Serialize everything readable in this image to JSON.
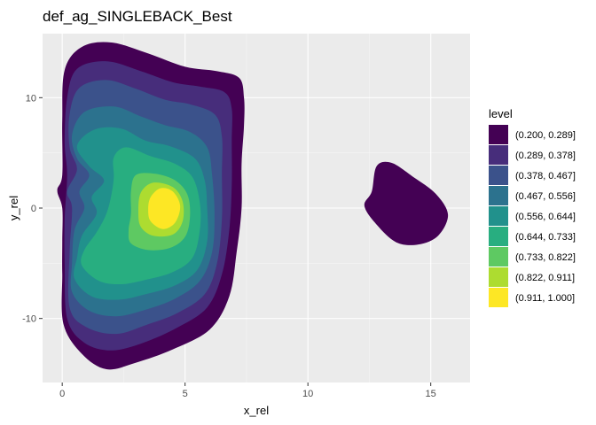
{
  "chart_data": {
    "type": "contour",
    "title": "def_ag_SINGLEBACK_Best",
    "xlabel": "x_rel",
    "ylabel": "y_rel",
    "xlim": [
      -0.8,
      16.6
    ],
    "ylim": [
      -15.8,
      15.8
    ],
    "x_ticks": [
      0,
      5,
      10,
      15
    ],
    "y_ticks": [
      -10,
      0,
      10
    ],
    "grid": true,
    "legend": {
      "title": "level",
      "position": "right",
      "entries": [
        {
          "label": "(0.200, 0.289]",
          "color": "#440154"
        },
        {
          "label": "(0.289, 0.378]",
          "color": "#472d7b"
        },
        {
          "label": "(0.378, 0.467]",
          "color": "#3b528b"
        },
        {
          "label": "(0.467, 0.556]",
          "color": "#2c728e"
        },
        {
          "label": "(0.556, 0.644]",
          "color": "#21918c"
        },
        {
          "label": "(0.644, 0.733]",
          "color": "#28ae80"
        },
        {
          "label": "(0.733, 0.822]",
          "color": "#5ec962"
        },
        {
          "label": "(0.822, 0.911]",
          "color": "#addc30"
        },
        {
          "label": "(0.911, 1.000]",
          "color": "#fde725"
        }
      ]
    },
    "regions": [
      {
        "level": 1,
        "points": [
          [
            0,
            -6
          ],
          [
            0.05,
            -10.5
          ],
          [
            0.8,
            -13.2
          ],
          [
            1.8,
            -14.6
          ],
          [
            3,
            -14
          ],
          [
            4.5,
            -12.8
          ],
          [
            6,
            -11
          ],
          [
            6.8,
            -8
          ],
          [
            7.1,
            -4
          ],
          [
            7.3,
            0
          ],
          [
            7.3,
            4
          ],
          [
            7.4,
            7.5
          ],
          [
            7.4,
            10
          ],
          [
            7.2,
            11.8
          ],
          [
            6.3,
            12.4
          ],
          [
            5,
            12.8
          ],
          [
            3.5,
            14
          ],
          [
            2,
            15
          ],
          [
            0.8,
            14.6
          ],
          [
            0.1,
            12.5
          ],
          [
            0,
            8
          ],
          [
            0,
            3
          ],
          [
            -0.2,
            1.6
          ],
          [
            0,
            0
          ],
          [
            0,
            -3
          ]
        ]
      },
      {
        "level": 1,
        "points": [
          [
            12.6,
            1.5
          ],
          [
            12.8,
            3.8
          ],
          [
            13.4,
            4.1
          ],
          [
            14.3,
            2.8
          ],
          [
            15.2,
            1.3
          ],
          [
            15.7,
            -0.6
          ],
          [
            15.3,
            -2.5
          ],
          [
            14.5,
            -3.3
          ],
          [
            13.6,
            -3.1
          ],
          [
            12.8,
            -1.5
          ],
          [
            12.3,
            0.2
          ]
        ]
      },
      {
        "level": 2,
        "points": [
          [
            0.2,
            -10
          ],
          [
            0.9,
            -12.2
          ],
          [
            2,
            -12.9
          ],
          [
            3.3,
            -12.2
          ],
          [
            4.7,
            -10.8
          ],
          [
            5.9,
            -9
          ],
          [
            6.5,
            -6
          ],
          [
            6.8,
            -2
          ],
          [
            6.9,
            2
          ],
          [
            6.9,
            6
          ],
          [
            6.9,
            9
          ],
          [
            6.6,
            10.5
          ],
          [
            5.6,
            11
          ],
          [
            4.5,
            11.4
          ],
          [
            3.2,
            12.4
          ],
          [
            1.8,
            13.3
          ],
          [
            0.6,
            12.6
          ],
          [
            0.2,
            10
          ],
          [
            0.1,
            6
          ],
          [
            0.2,
            3
          ],
          [
            0.1,
            -1
          ],
          [
            0.1,
            -5
          ]
        ]
      },
      {
        "level": 3,
        "points": [
          [
            0.3,
            -9
          ],
          [
            1,
            -10.8
          ],
          [
            2.2,
            -11.4
          ],
          [
            3.4,
            -10.6
          ],
          [
            4.7,
            -9.5
          ],
          [
            5.8,
            -7.8
          ],
          [
            6.3,
            -5
          ],
          [
            6.5,
            -1
          ],
          [
            6.5,
            3
          ],
          [
            6.5,
            6.5
          ],
          [
            6.2,
            8.5
          ],
          [
            5.2,
            9.4
          ],
          [
            4.2,
            9.8
          ],
          [
            3,
            10.8
          ],
          [
            1.8,
            11.6
          ],
          [
            0.7,
            10.9
          ],
          [
            0.3,
            8.5
          ],
          [
            0.3,
            5.5
          ],
          [
            0.6,
            3.5
          ],
          [
            0.2,
            1.5
          ],
          [
            0.4,
            0
          ],
          [
            0.3,
            -4
          ]
        ]
      },
      {
        "level": 4,
        "points": [
          [
            0.4,
            -7.6
          ],
          [
            1.1,
            -9.3
          ],
          [
            2.2,
            -9.8
          ],
          [
            3.4,
            -9.2
          ],
          [
            4.6,
            -8.2
          ],
          [
            5.6,
            -6.6
          ],
          [
            6.1,
            -4
          ],
          [
            6.2,
            -0.5
          ],
          [
            6.1,
            3
          ],
          [
            5.9,
            5.5
          ],
          [
            5.2,
            6.9
          ],
          [
            4.2,
            7.5
          ],
          [
            3.2,
            8.3
          ],
          [
            2.1,
            9.2
          ],
          [
            0.9,
            8.7
          ],
          [
            0.4,
            6.6
          ],
          [
            0.6,
            4.5
          ],
          [
            1.1,
            3
          ],
          [
            0.7,
            1.5
          ],
          [
            0.9,
            0
          ],
          [
            0.5,
            -2
          ],
          [
            0.4,
            -5
          ]
        ]
      },
      {
        "level": 5,
        "points": [
          [
            0.5,
            -6.4
          ],
          [
            1.2,
            -8
          ],
          [
            2.3,
            -8.3
          ],
          [
            3.4,
            -7.8
          ],
          [
            4.6,
            -7
          ],
          [
            5.5,
            -5.6
          ],
          [
            5.9,
            -3
          ],
          [
            5.9,
            0
          ],
          [
            5.8,
            2.5
          ],
          [
            5.4,
            4.5
          ],
          [
            4.4,
            5.6
          ],
          [
            3.4,
            6.1
          ],
          [
            2.4,
            7.2
          ],
          [
            1.3,
            7.1
          ],
          [
            0.6,
            5.6
          ],
          [
            1.1,
            3.8
          ],
          [
            1.7,
            2.5
          ],
          [
            1.2,
            1
          ],
          [
            1.4,
            -0.5
          ],
          [
            0.8,
            -2.5
          ],
          [
            0.6,
            -4.5
          ]
        ]
      },
      {
        "level": 6,
        "points": [
          [
            0.8,
            -5.2
          ],
          [
            1.5,
            -6.6
          ],
          [
            2.4,
            -6.9
          ],
          [
            3.4,
            -6.5
          ],
          [
            4.5,
            -5.8
          ],
          [
            5.3,
            -4.5
          ],
          [
            5.6,
            -2
          ],
          [
            5.6,
            0.5
          ],
          [
            5.3,
            2.8
          ],
          [
            4.6,
            4
          ],
          [
            3.6,
            4.7
          ],
          [
            2.6,
            5.5
          ],
          [
            2.1,
            4.6
          ],
          [
            2.1,
            2.8
          ],
          [
            2,
            1.2
          ],
          [
            1.8,
            -0.5
          ],
          [
            1.4,
            -2.2
          ],
          [
            0.9,
            -3.8
          ]
        ]
      },
      {
        "level": 7,
        "points": [
          [
            2.8,
            -3.2
          ],
          [
            3.5,
            -3.8
          ],
          [
            4.4,
            -3.6
          ],
          [
            5,
            -2.6
          ],
          [
            5.2,
            -0.8
          ],
          [
            5.1,
            1.2
          ],
          [
            4.6,
            2.5
          ],
          [
            3.8,
            3.1
          ],
          [
            3,
            3
          ],
          [
            2.8,
            1.5
          ],
          [
            2.8,
            -0.5
          ],
          [
            2.7,
            -2
          ]
        ]
      },
      {
        "level": 8,
        "points": [
          [
            3.2,
            -1.7
          ],
          [
            3.7,
            -2.5
          ],
          [
            4.5,
            -2.4
          ],
          [
            4.9,
            -1.2
          ],
          [
            4.9,
            0.6
          ],
          [
            4.5,
            1.9
          ],
          [
            3.7,
            2.3
          ],
          [
            3.2,
            1.4
          ],
          [
            3.1,
            -0.3
          ]
        ]
      },
      {
        "level": 9,
        "points": [
          [
            3.6,
            -1.2
          ],
          [
            4.1,
            -1.9
          ],
          [
            4.6,
            -1.3
          ],
          [
            4.8,
            0.2
          ],
          [
            4.5,
            1.5
          ],
          [
            4,
            1.8
          ],
          [
            3.6,
            1
          ],
          [
            3.5,
            -0.1
          ]
        ]
      }
    ]
  }
}
